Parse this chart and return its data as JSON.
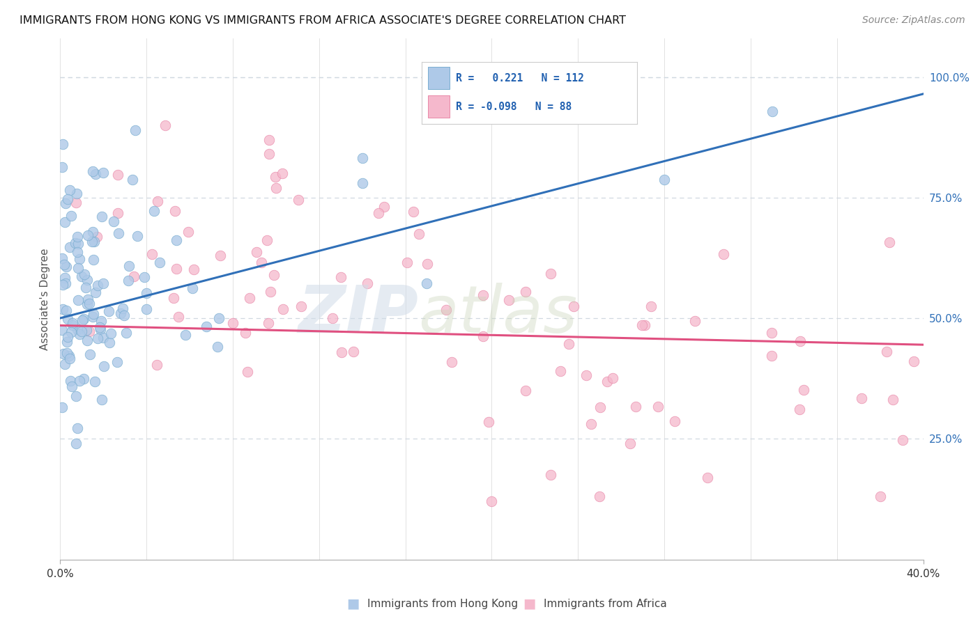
{
  "title": "IMMIGRANTS FROM HONG KONG VS IMMIGRANTS FROM AFRICA ASSOCIATE'S DEGREE CORRELATION CHART",
  "source": "Source: ZipAtlas.com",
  "ylabel": "Associate's Degree",
  "x_range": [
    0.0,
    0.4
  ],
  "y_range": [
    0.0,
    1.08
  ],
  "blue_scatter_color": "#aec9e8",
  "blue_scatter_edge": "#7aaed0",
  "pink_scatter_color": "#f5b8cc",
  "pink_scatter_edge": "#e888a8",
  "blue_line_color": "#3070b8",
  "pink_line_color": "#e05080",
  "grid_color": "#d0d8e0",
  "right_tick_color": "#3070b8",
  "title_color": "#111111",
  "source_color": "#888888",
  "ylabel_color": "#555555",
  "blue_line_x0": 0.0,
  "blue_line_y0": 0.5,
  "blue_line_x1": 0.4,
  "blue_line_y1": 0.965,
  "pink_line_x0": 0.0,
  "pink_line_y0": 0.485,
  "pink_line_x1": 0.4,
  "pink_line_y1": 0.445,
  "legend_r1_text": "R =   0.221   N = 112",
  "legend_r2_text": "R = -0.098   N = 88",
  "bottom_legend1": "Immigrants from Hong Kong",
  "bottom_legend2": "Immigrants from Africa",
  "watermark_zip": "ZIP",
  "watermark_atlas": "atlas",
  "seed": 12345,
  "n_hk": 112,
  "n_af": 88
}
